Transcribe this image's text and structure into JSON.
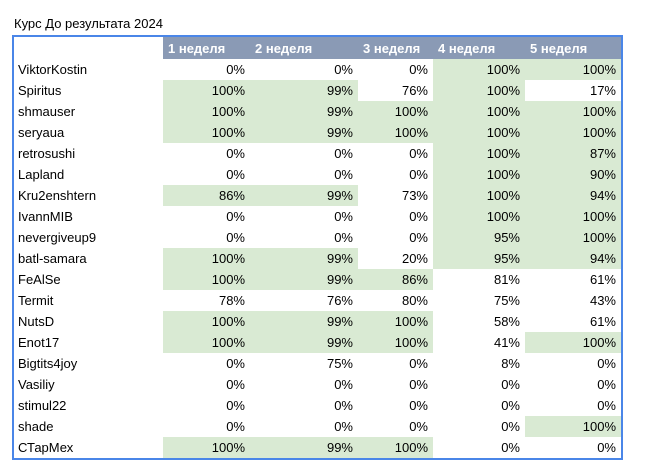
{
  "sheet": {
    "title": "Курс До результата 2024",
    "headers": [
      "",
      "1 неделя",
      "2 неделя",
      "3 неделя",
      "4 неделя",
      "5 неделя"
    ],
    "highlight_color": "#d9ead3",
    "header_color": "#8a9ab5",
    "rows": [
      {
        "name": "ViktorKostin",
        "values": [
          "0%",
          "0%",
          "0%",
          "100%",
          "100%"
        ],
        "green": [
          false,
          false,
          false,
          true,
          true
        ]
      },
      {
        "name": "Spiritus",
        "values": [
          "100%",
          "99%",
          "76%",
          "100%",
          "17%"
        ],
        "green": [
          true,
          true,
          false,
          true,
          false
        ]
      },
      {
        "name": "shmauser",
        "values": [
          "100%",
          "99%",
          "100%",
          "100%",
          "100%"
        ],
        "green": [
          true,
          true,
          true,
          true,
          true
        ]
      },
      {
        "name": "seryaua",
        "values": [
          "100%",
          "99%",
          "100%",
          "100%",
          "100%"
        ],
        "green": [
          true,
          true,
          true,
          true,
          true
        ]
      },
      {
        "name": "retrosushi",
        "values": [
          "0%",
          "0%",
          "0%",
          "100%",
          "87%"
        ],
        "green": [
          false,
          false,
          false,
          true,
          true
        ]
      },
      {
        "name": "Lapland",
        "values": [
          "0%",
          "0%",
          "0%",
          "100%",
          "90%"
        ],
        "green": [
          false,
          false,
          false,
          true,
          true
        ]
      },
      {
        "name": "Kru2enshtern",
        "values": [
          "86%",
          "99%",
          "73%",
          "100%",
          "94%"
        ],
        "green": [
          true,
          true,
          false,
          true,
          true
        ]
      },
      {
        "name": "IvannMIB",
        "values": [
          "0%",
          "0%",
          "0%",
          "100%",
          "100%"
        ],
        "green": [
          false,
          false,
          false,
          true,
          true
        ]
      },
      {
        "name": "nevergiveup9",
        "values": [
          "0%",
          "0%",
          "0%",
          "95%",
          "100%"
        ],
        "green": [
          false,
          false,
          false,
          true,
          true
        ]
      },
      {
        "name": "batl-samara",
        "values": [
          "100%",
          "99%",
          "20%",
          "95%",
          "94%"
        ],
        "green": [
          true,
          true,
          false,
          true,
          true
        ]
      },
      {
        "name": "FeAlSe",
        "values": [
          "100%",
          "99%",
          "86%",
          "81%",
          "61%"
        ],
        "green": [
          true,
          true,
          true,
          false,
          false
        ]
      },
      {
        "name": "Termit",
        "values": [
          "78%",
          "76%",
          "80%",
          "75%",
          "43%"
        ],
        "green": [
          false,
          false,
          false,
          false,
          false
        ]
      },
      {
        "name": "NutsD",
        "values": [
          "100%",
          "99%",
          "100%",
          "58%",
          "61%"
        ],
        "green": [
          true,
          true,
          true,
          false,
          false
        ]
      },
      {
        "name": "Enot17",
        "values": [
          "100%",
          "99%",
          "100%",
          "41%",
          "100%"
        ],
        "green": [
          true,
          true,
          true,
          false,
          true
        ]
      },
      {
        "name": "Bigtits4joy",
        "values": [
          "0%",
          "75%",
          "0%",
          "8%",
          "0%"
        ],
        "green": [
          false,
          false,
          false,
          false,
          false
        ]
      },
      {
        "name": "Vasiliy",
        "values": [
          "0%",
          "0%",
          "0%",
          "0%",
          "0%"
        ],
        "green": [
          false,
          false,
          false,
          false,
          false
        ]
      },
      {
        "name": "stimul22",
        "values": [
          "0%",
          "0%",
          "0%",
          "0%",
          "0%"
        ],
        "green": [
          false,
          false,
          false,
          false,
          false
        ]
      },
      {
        "name": "shade",
        "values": [
          "0%",
          "0%",
          "0%",
          "0%",
          "100%"
        ],
        "green": [
          false,
          false,
          false,
          false,
          true
        ]
      },
      {
        "name": "СТарМех",
        "values": [
          "100%",
          "99%",
          "100%",
          "0%",
          "0%"
        ],
        "green": [
          true,
          true,
          true,
          false,
          false
        ]
      }
    ]
  }
}
